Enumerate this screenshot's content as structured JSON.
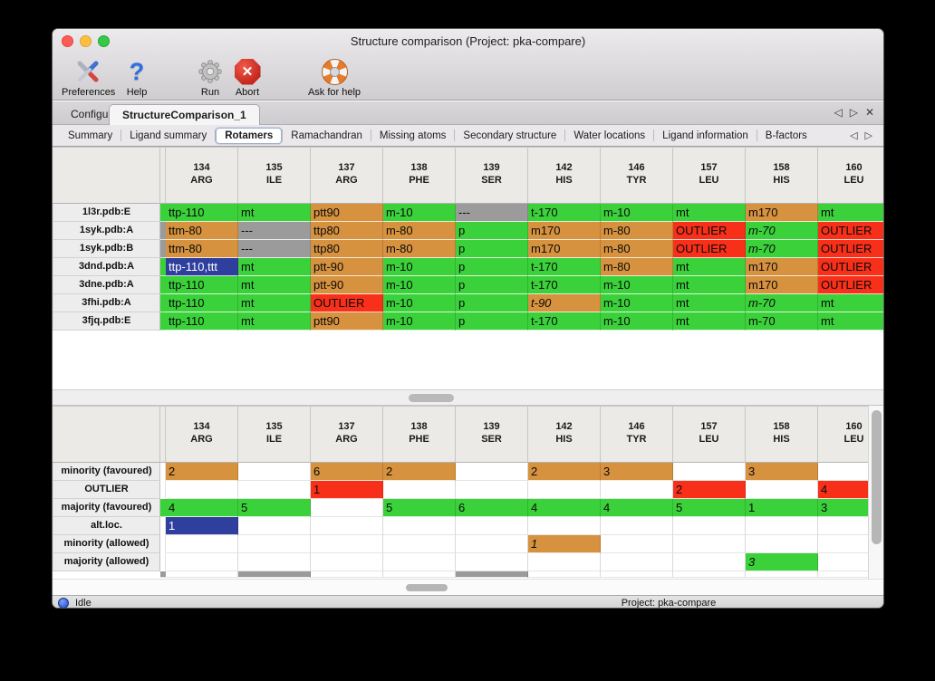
{
  "colors": {
    "green": "#3bd13b",
    "orange": "#d6923f",
    "red": "#f8301a",
    "gray": "#9b9b9b",
    "blue": "#2f3f9e"
  },
  "titlebar": {
    "title": "Structure comparison (Project: pka-compare)"
  },
  "toolbar": {
    "buttons": [
      {
        "label": "Preferences",
        "icon": "tools-icon"
      },
      {
        "label": "Help",
        "icon": "question-mark-icon"
      },
      {
        "label": "Run",
        "icon": "gear-icon"
      },
      {
        "label": "Abort",
        "icon": "stop-x-icon"
      },
      {
        "label": "Ask for help",
        "icon": "lifebuoy-icon"
      }
    ]
  },
  "tabs": {
    "items": [
      {
        "label": "Configure",
        "active": false
      },
      {
        "label": "StructureComparison_1",
        "active": true
      }
    ],
    "nav_prev": "◁",
    "nav_next": "▷",
    "nav_close": "✕"
  },
  "subtabs": {
    "items": [
      "Summary",
      "Ligand summary",
      "Rotamers",
      "Ramachandran",
      "Missing atoms",
      "Secondary structure",
      "Water locations",
      "Ligand information",
      "B-factors"
    ],
    "selected": "Rotamers",
    "nav_prev": "◁",
    "nav_next": "▷"
  },
  "columns": [
    {
      "num": "134",
      "res": "ARG"
    },
    {
      "num": "135",
      "res": "ILE"
    },
    {
      "num": "137",
      "res": "ARG"
    },
    {
      "num": "138",
      "res": "PHE"
    },
    {
      "num": "139",
      "res": "SER"
    },
    {
      "num": "142",
      "res": "HIS"
    },
    {
      "num": "146",
      "res": "TYR"
    },
    {
      "num": "157",
      "res": "LEU"
    },
    {
      "num": "158",
      "res": "HIS"
    },
    {
      "num": "160",
      "res": "LEU"
    }
  ],
  "structures_table": {
    "rows": [
      {
        "label": "1l3r.pdb:E",
        "strip": "green",
        "cells": [
          [
            "ttp-110",
            "green"
          ],
          [
            "mt",
            "green"
          ],
          [
            "ptt90",
            "orange"
          ],
          [
            "m-10",
            "green"
          ],
          [
            "---",
            "gray"
          ],
          [
            "t-170",
            "green"
          ],
          [
            "m-10",
            "green"
          ],
          [
            "mt",
            "green"
          ],
          [
            "m170",
            "orange"
          ],
          [
            "mt",
            "green"
          ]
        ]
      },
      {
        "label": "1syk.pdb:A",
        "strip": "gray",
        "cells": [
          [
            "ttm-80",
            "orange"
          ],
          [
            "---",
            "gray"
          ],
          [
            "ttp80",
            "orange"
          ],
          [
            "m-80",
            "orange"
          ],
          [
            "p",
            "green"
          ],
          [
            "m170",
            "orange"
          ],
          [
            "m-80",
            "orange"
          ],
          [
            "OUTLIER",
            "red"
          ],
          [
            "m-70",
            "green",
            "i"
          ],
          [
            "OUTLIER",
            "red"
          ]
        ]
      },
      {
        "label": "1syk.pdb:B",
        "strip": "gray",
        "cells": [
          [
            "ttm-80",
            "orange"
          ],
          [
            "---",
            "gray"
          ],
          [
            "ttp80",
            "orange"
          ],
          [
            "m-80",
            "orange"
          ],
          [
            "p",
            "green"
          ],
          [
            "m170",
            "orange"
          ],
          [
            "m-80",
            "orange"
          ],
          [
            "OUTLIER",
            "red"
          ],
          [
            "m-70",
            "green",
            "i"
          ],
          [
            "OUTLIER",
            "red"
          ]
        ]
      },
      {
        "label": "3dnd.pdb:A",
        "strip": "green",
        "cells": [
          [
            "ttp-110,ttt",
            "blue"
          ],
          [
            "mt",
            "green"
          ],
          [
            "ptt-90",
            "orange"
          ],
          [
            "m-10",
            "green"
          ],
          [
            "p",
            "green"
          ],
          [
            "t-170",
            "green"
          ],
          [
            "m-80",
            "orange"
          ],
          [
            "mt",
            "green"
          ],
          [
            "m170",
            "orange"
          ],
          [
            "OUTLIER",
            "red"
          ]
        ]
      },
      {
        "label": "3dne.pdb:A",
        "strip": "green",
        "cells": [
          [
            "ttp-110",
            "green"
          ],
          [
            "mt",
            "green"
          ],
          [
            "ptt-90",
            "orange"
          ],
          [
            "m-10",
            "green"
          ],
          [
            "p",
            "green"
          ],
          [
            "t-170",
            "green"
          ],
          [
            "m-10",
            "green"
          ],
          [
            "mt",
            "green"
          ],
          [
            "m170",
            "orange"
          ],
          [
            "OUTLIER",
            "red"
          ]
        ]
      },
      {
        "label": "3fhi.pdb:A",
        "strip": "green",
        "cells": [
          [
            "ttp-110",
            "green"
          ],
          [
            "mt",
            "green"
          ],
          [
            "OUTLIER",
            "red"
          ],
          [
            "m-10",
            "green"
          ],
          [
            "p",
            "green"
          ],
          [
            "t-90",
            "orange",
            "i"
          ],
          [
            "m-10",
            "green"
          ],
          [
            "mt",
            "green"
          ],
          [
            "m-70",
            "green",
            "i"
          ],
          [
            "mt",
            "green"
          ]
        ]
      },
      {
        "label": "3fjq.pdb:E",
        "strip": "green",
        "cells": [
          [
            "ttp-110",
            "green"
          ],
          [
            "mt",
            "green"
          ],
          [
            "ptt90",
            "orange"
          ],
          [
            "m-10",
            "green"
          ],
          [
            "p",
            "green"
          ],
          [
            "t-170",
            "green"
          ],
          [
            "m-10",
            "green"
          ],
          [
            "mt",
            "green"
          ],
          [
            "m-70",
            "green"
          ],
          [
            "mt",
            "green"
          ]
        ]
      }
    ]
  },
  "summary_table": {
    "rows": [
      {
        "label": "minority (favoured)",
        "strip": "white",
        "cells": [
          [
            "2",
            "orange"
          ],
          [
            "",
            ""
          ],
          [
            "6",
            "orange"
          ],
          [
            "2",
            "orange"
          ],
          [
            "",
            ""
          ],
          [
            "2",
            "orange"
          ],
          [
            "3",
            "orange"
          ],
          [
            "",
            ""
          ],
          [
            "3",
            "orange"
          ],
          [
            "",
            ""
          ]
        ]
      },
      {
        "label": "OUTLIER",
        "strip": "white",
        "cells": [
          [
            "",
            ""
          ],
          [
            "",
            ""
          ],
          [
            "1",
            "red"
          ],
          [
            "",
            ""
          ],
          [
            "",
            ""
          ],
          [
            "",
            ""
          ],
          [
            "",
            ""
          ],
          [
            "2",
            "red"
          ],
          [
            "",
            ""
          ],
          [
            "4",
            "red"
          ]
        ]
      },
      {
        "label": "majority (favoured)",
        "strip": "green",
        "cells": [
          [
            "4",
            "green"
          ],
          [
            "5",
            "green"
          ],
          [
            "",
            ""
          ],
          [
            "5",
            "green"
          ],
          [
            "6",
            "green"
          ],
          [
            "4",
            "green"
          ],
          [
            "4",
            "green"
          ],
          [
            "5",
            "green"
          ],
          [
            "1",
            "green"
          ],
          [
            "3",
            "green"
          ]
        ]
      },
      {
        "label": "alt.loc.",
        "strip": "white",
        "cells": [
          [
            "1",
            "blue"
          ],
          [
            "",
            ""
          ],
          [
            "",
            ""
          ],
          [
            "",
            ""
          ],
          [
            "",
            ""
          ],
          [
            "",
            ""
          ],
          [
            "",
            ""
          ],
          [
            "",
            ""
          ],
          [
            "",
            ""
          ],
          [
            "",
            ""
          ]
        ]
      },
      {
        "label": "minority (allowed)",
        "strip": "white",
        "cells": [
          [
            "",
            ""
          ],
          [
            "",
            ""
          ],
          [
            "",
            ""
          ],
          [
            "",
            ""
          ],
          [
            "",
            ""
          ],
          [
            "1",
            "orange",
            "i"
          ],
          [
            "",
            ""
          ],
          [
            "",
            ""
          ],
          [
            "",
            ""
          ],
          [
            "",
            ""
          ]
        ]
      },
      {
        "label": "majority (allowed)",
        "strip": "white",
        "cells": [
          [
            "",
            ""
          ],
          [
            "",
            ""
          ],
          [
            "",
            ""
          ],
          [
            "",
            ""
          ],
          [
            "",
            ""
          ],
          [
            "",
            ""
          ],
          [
            "",
            ""
          ],
          [
            "",
            ""
          ],
          [
            "3",
            "green",
            "i"
          ],
          [
            "",
            ""
          ]
        ]
      }
    ],
    "partial_row": {
      "strip": "gray",
      "gray_col_indices": [
        1,
        4
      ]
    }
  },
  "statusbar": {
    "status": "Idle",
    "project": "Project: pka-compare"
  }
}
